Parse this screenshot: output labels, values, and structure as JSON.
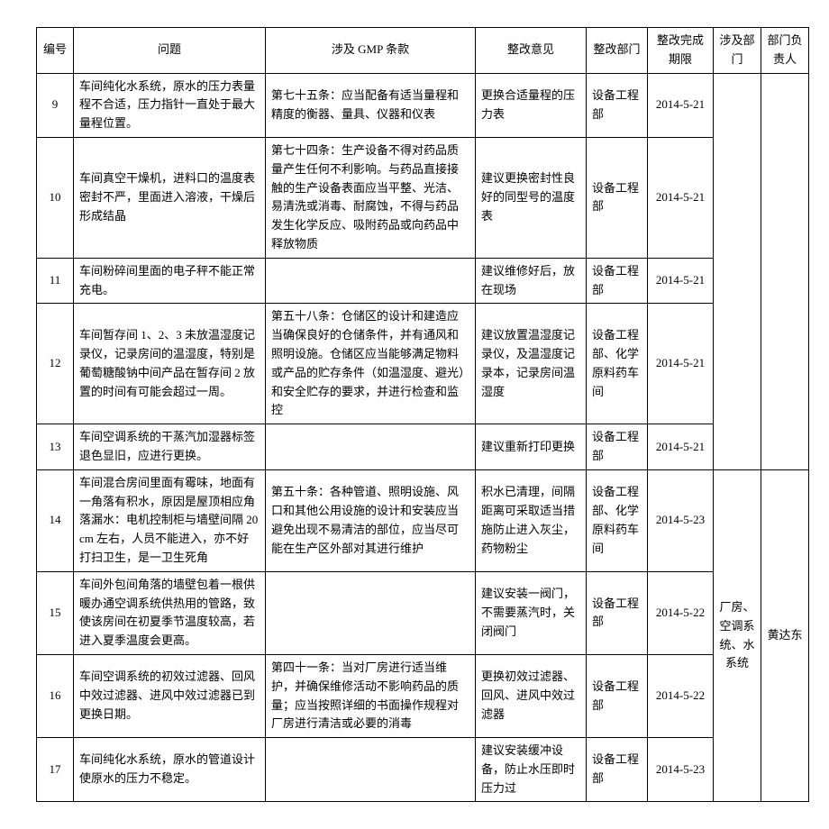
{
  "columns": [
    "编号",
    "问题",
    "涉及 GMP 条款",
    "整改意见",
    "整改部门",
    "整改完成期限",
    "涉及部门",
    "部门负责人"
  ],
  "rows": [
    {
      "no": "9",
      "issue": "车间纯化水系统，原水的压力表量程不合适，压力指针一直处于最大量程位置。",
      "gmp": "第七十五条：应当配备有适当量程和精度的衡器、量具、仪器和仪表",
      "opinion": "更换合适量程的压力表",
      "dept": "设备工程部",
      "deadline": "2014-5-21"
    },
    {
      "no": "10",
      "issue": "车间真空干燥机，进料口的温度表密封不严，里面进入溶液，干燥后形成结晶",
      "gmp": "第七十四条：生产设备不得对药品质量产生任何不利影响。与药品直接接触的生产设备表面应当平整、光洁、易清洗或消毒、耐腐蚀，不得与药品发生化学反应、吸附药品或向药品中释放物质",
      "opinion": "建议更换密封性良好的同型号的温度表",
      "dept": "设备工程部",
      "deadline": "2014-5-21"
    },
    {
      "no": "11",
      "issue": "车间粉碎间里面的电子秤不能正常充电。",
      "gmp": "",
      "opinion": "建议维修好后，放在现场",
      "dept": "设备工程部",
      "deadline": "2014-5-21"
    },
    {
      "no": "12",
      "issue": "车间暂存间 1、2、3 未放温湿度记录仪，记录房间的温湿度，特别是葡萄糖酸钠中间产品在暂存间 2 放置的时间有可能会超过一周。",
      "gmp": "第五十八条：仓储区的设计和建造应当确保良好的仓储条件，并有通风和照明设施。仓储区应当能够满足物料或产品的贮存条件（如温湿度、避光）和安全贮存的要求，并进行检查和监控",
      "opinion": "建议放置温湿度记录仪，及温湿度记录本，记录房间温湿度",
      "dept": "设备工程部、化学原料药车间",
      "deadline": "2014-5-21"
    },
    {
      "no": "13",
      "issue": "车间空调系统的干蒸汽加湿器标签退色显旧，应进行更换。",
      "gmp": "",
      "opinion": "建议重新打印更换",
      "dept": "设备工程部",
      "deadline": "2014-5-21"
    },
    {
      "no": "14",
      "issue": "车间混合房间里面有霉味，地面有一角落有积水，原因是屋顶相应角落漏水：电机控制柜与墙壁间隔 20cm 左右，人员不能进入，亦不好打扫卫生，是一卫生死角",
      "gmp": "第五十条：各种管道、照明设施、风口和其他公用设施的设计和安装应当避免出现不易清洁的部位，应当尽可能在生产区外部对其进行维护",
      "opinion": "积水已清理，间隔距离可采取适当措施防止进入灰尘，药物粉尘",
      "dept": "设备工程部、化学原料药车间",
      "deadline": "2014-5-23"
    },
    {
      "no": "15",
      "issue": "车间外包间角落的墙壁包着一根供暖办通空调系统供热用的管路，致使该房间在初夏季节温度较高，若进入夏季温度会更高。",
      "gmp": "",
      "opinion": "建议安装一阀门，不需要蒸汽时，关闭阀门",
      "dept": "设备工程部",
      "deadline": "2014-5-22"
    },
    {
      "no": "16",
      "issue": "车间空调系统的初效过滤器、回风中效过滤器、进风中效过滤器已到更换日期。",
      "gmp": "第四十一条：当对厂房进行适当维护，并确保维修活动不影响药品的质量；应当按照详细的书面操作规程对厂房进行清洁或必要的消毒",
      "opinion": "更换初效过滤器、回风、进风中效过滤器",
      "dept": "设备工程部",
      "deadline": "2014-5-22"
    },
    {
      "no": "17",
      "issue": "车间纯化水系统，原水的管道设计使原水的压力不稳定。",
      "gmp": "",
      "opinion": "建议安装缓冲设备，防止水压即时压力过",
      "dept": "设备工程部",
      "deadline": "2014-5-23"
    }
  ],
  "related_dept": "厂房、空调系统、水系统",
  "owner": "黄达东"
}
